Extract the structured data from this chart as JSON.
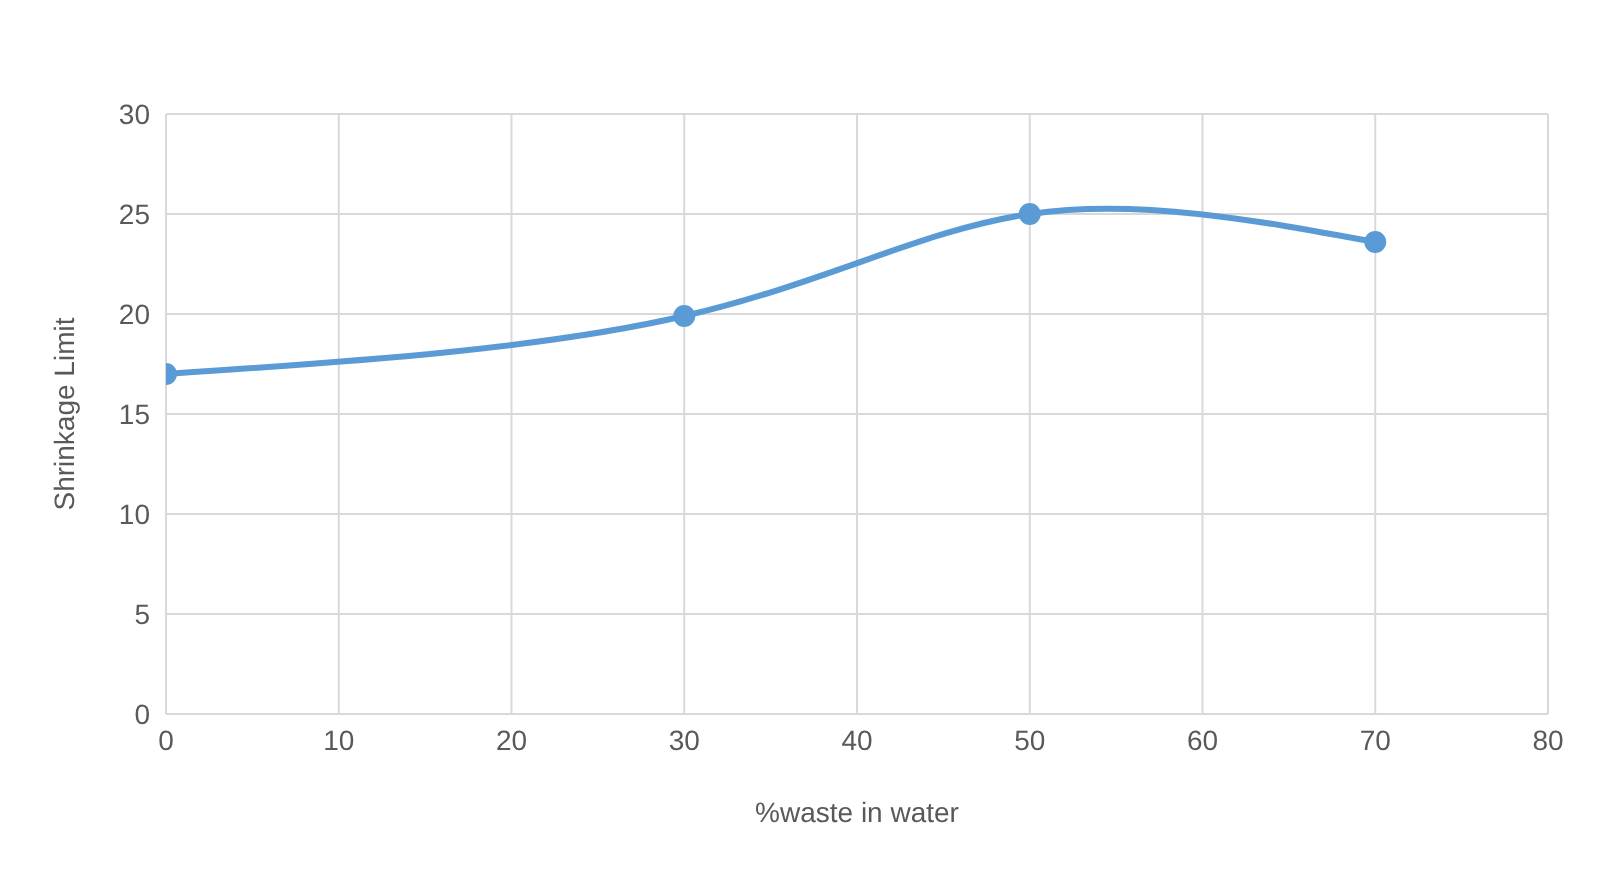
{
  "chart_data": {
    "type": "line",
    "xlabel": "%waste in water",
    "ylabel": "Shrinkage Limit",
    "x": [
      0,
      30,
      50,
      70
    ],
    "series": [
      {
        "color": "#5b9bd5",
        "values": [
          17,
          19.9,
          25,
          23.6
        ]
      }
    ],
    "xlim": [
      0,
      80
    ],
    "xticks": [
      0,
      10,
      20,
      30,
      40,
      50,
      60,
      70,
      80
    ],
    "ylim": [
      0,
      30
    ],
    "yticks": [
      0,
      5,
      10,
      15,
      20,
      25,
      30
    ],
    "grid": true,
    "legend": false,
    "marker": "circle",
    "line_style": "solid"
  }
}
